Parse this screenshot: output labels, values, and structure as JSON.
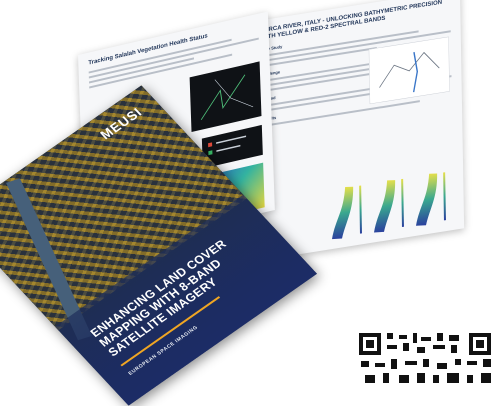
{
  "brochure": {
    "cover": {
      "logo": "MEUSI",
      "title": "ENHANCING LAND COVER MAPPING WITH 8-BAND SATELLITE IMAGERY",
      "subtitle": "EUROPEAN SPACE IMAGING"
    },
    "left_page": {
      "title": "Tracking Salalah Vegetation Health Status"
    },
    "right_page": {
      "title": "SARCA RIVER, ITALY - UNLOCKING BATHYMETRIC PRECISION WITH YELLOW & RED-2 SPECTRAL BANDS",
      "sections": [
        "Case Study",
        "Challenge",
        "Method",
        "Results"
      ]
    }
  },
  "colors": {
    "cover_navy": "#1c2c66",
    "accent_orange": "#f0a623",
    "imagery_gold": "#c99c18"
  }
}
